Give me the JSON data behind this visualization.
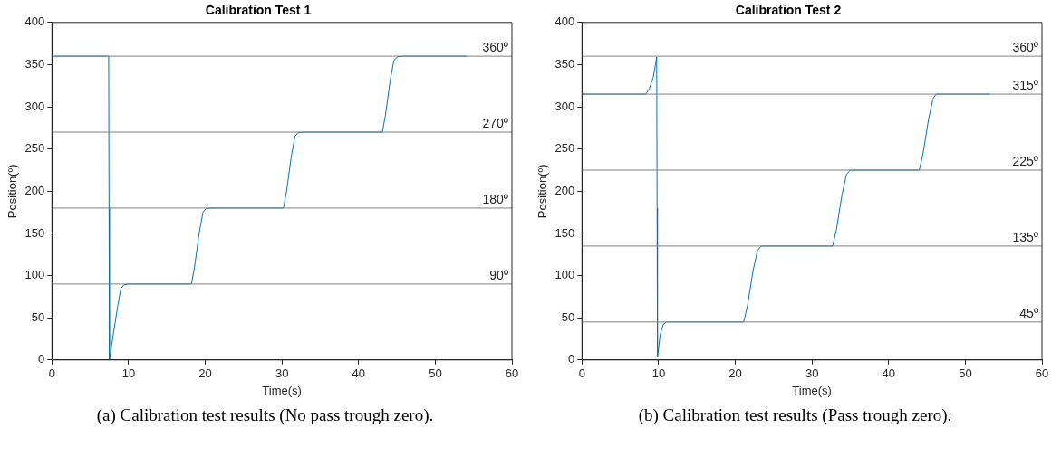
{
  "chart_data": [
    {
      "type": "line",
      "title": "Calibration Test 1",
      "xlabel": "Time(s)",
      "ylabel": "Position(º)",
      "xlim": [
        0,
        60
      ],
      "xticks": [
        0,
        10,
        20,
        30,
        40,
        50,
        60
      ],
      "ylim": [
        0,
        400
      ],
      "yticks": [
        0,
        50,
        100,
        150,
        200,
        250,
        300,
        350,
        400
      ],
      "grid": false,
      "legend": false,
      "marker": "none",
      "line_style": "solid",
      "series": [
        {
          "color": "#0072bd",
          "x": [
            0,
            7.4,
            7.45,
            7.5,
            8.0,
            8.6,
            9.0,
            9.4,
            10,
            18.2,
            18.6,
            19.2,
            19.7,
            20.1,
            21,
            30.2,
            30.6,
            31.2,
            31.7,
            32.1,
            33,
            43.1,
            43.5,
            44.1,
            44.6,
            45.1,
            46,
            54.1
          ],
          "values": [
            360,
            360,
            180,
            0,
            30,
            65,
            85,
            89,
            90,
            90,
            110,
            150,
            175,
            179.5,
            180,
            180,
            200,
            240,
            265,
            269.5,
            270,
            270,
            290,
            330,
            355,
            359.5,
            360,
            360
          ]
        }
      ],
      "ref_lines": [
        {
          "axis": "y",
          "value": 360,
          "label": "360º",
          "color": "#808080"
        },
        {
          "axis": "y",
          "value": 270,
          "label": "270º",
          "color": "#808080"
        },
        {
          "axis": "y",
          "value": 180,
          "label": "180º",
          "color": "#808080"
        },
        {
          "axis": "y",
          "value": 90,
          "label": "90º",
          "color": "#808080"
        }
      ],
      "annotations": [
        "(a) Calibration test results (No pass trough zero)."
      ]
    },
    {
      "type": "line",
      "title": "Calibration Test 2",
      "xlabel": "Time(s)",
      "ylabel": "Position(º)",
      "xlim": [
        0,
        60
      ],
      "xticks": [
        0,
        10,
        20,
        30,
        40,
        50,
        60
      ],
      "ylim": [
        0,
        400
      ],
      "yticks": [
        0,
        50,
        100,
        150,
        200,
        250,
        300,
        350,
        400
      ],
      "grid": false,
      "legend": false,
      "marker": "none",
      "line_style": "solid",
      "series": [
        {
          "color": "#0072bd",
          "x": [
            0,
            8.34,
            8.8,
            9.3,
            9.75,
            9.8,
            9.85,
            10.2,
            10.6,
            11,
            21.1,
            21.6,
            22.3,
            22.9,
            23.4,
            32.7,
            33.2,
            33.9,
            34.5,
            35,
            44,
            44.5,
            45.2,
            45.8,
            46.2,
            53.2
          ],
          "values": [
            315,
            315,
            322,
            335,
            359,
            180,
            3,
            30,
            42,
            45,
            45,
            65,
            105,
            130,
            135,
            135,
            155,
            195,
            220,
            225,
            225,
            245,
            285,
            310,
            315,
            315
          ]
        }
      ],
      "ref_lines": [
        {
          "axis": "y",
          "value": 360,
          "label": "360º",
          "color": "#808080"
        },
        {
          "axis": "y",
          "value": 315,
          "label": "315º",
          "color": "#808080"
        },
        {
          "axis": "y",
          "value": 225,
          "label": "225º",
          "color": "#808080"
        },
        {
          "axis": "y",
          "value": 135,
          "label": "135º",
          "color": "#808080"
        },
        {
          "axis": "y",
          "value": 45,
          "label": "45º",
          "color": "#808080"
        }
      ],
      "annotations": [
        "(b) Calibration test results (Pass trough zero)."
      ]
    }
  ]
}
